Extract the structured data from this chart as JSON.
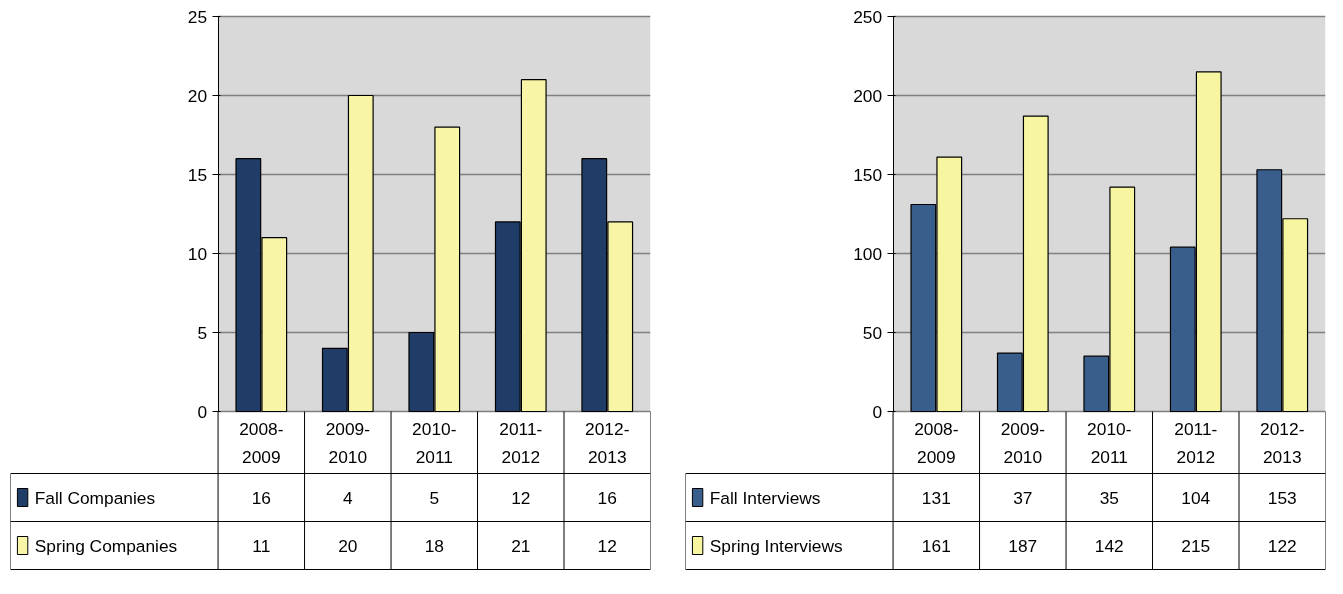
{
  "chart_data": [
    {
      "type": "bar",
      "categories": [
        "2008-2009",
        "2009-2010",
        "2010-2011",
        "2011-2012",
        "2012-2013"
      ],
      "series": [
        {
          "name": "Fall Companies",
          "color": "#1f3d66",
          "values": [
            16,
            4,
            5,
            12,
            16
          ]
        },
        {
          "name": "Spring Companies",
          "color": "#f8f5a6",
          "values": [
            11,
            20,
            18,
            21,
            12
          ]
        }
      ],
      "ylim": [
        0,
        25
      ],
      "yticks": [
        0,
        5,
        10,
        15,
        20,
        25
      ],
      "grid": "y",
      "data_labels": true,
      "legend": "bottom"
    },
    {
      "type": "bar",
      "categories": [
        "2008-2009",
        "2009-2010",
        "2010-2011",
        "2011-2012",
        "2012-2013"
      ],
      "series": [
        {
          "name": "Fall Interviews",
          "color": "#3a5e8c",
          "values": [
            131,
            37,
            35,
            104,
            153
          ]
        },
        {
          "name": "Spring Interviews",
          "color": "#f8f5a0",
          "values": [
            161,
            187,
            142,
            215,
            122
          ]
        }
      ],
      "ylim": [
        0,
        250
      ],
      "yticks": [
        0,
        50,
        100,
        150,
        200,
        250
      ],
      "grid": "y",
      "data_labels": true,
      "legend": "bottom"
    }
  ]
}
